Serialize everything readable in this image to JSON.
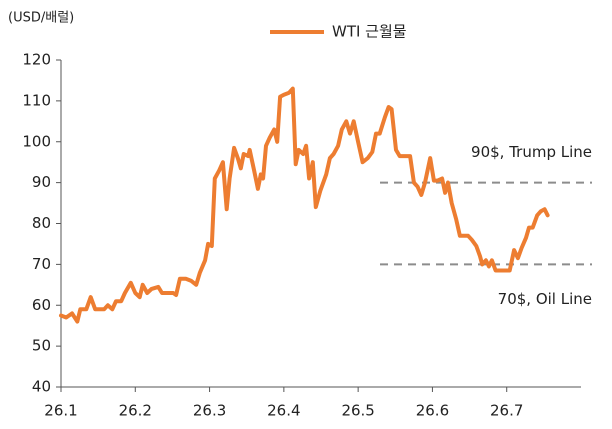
{
  "chart_data": {
    "type": "line",
    "y_unit_label": "(USD/배럴)",
    "legend_position": "top",
    "grid": false,
    "xlim": [
      0,
      7
    ],
    "xticks": [
      {
        "value": 0,
        "label": "26.1"
      },
      {
        "value": 1,
        "label": "26.2"
      },
      {
        "value": 2,
        "label": "26.3"
      },
      {
        "value": 3,
        "label": "26.4"
      },
      {
        "value": 4,
        "label": "26.5"
      },
      {
        "value": 5,
        "label": "26.6"
      },
      {
        "value": 6,
        "label": "26.7"
      }
    ],
    "ylim": [
      40,
      120
    ],
    "yticks": [
      40,
      50,
      60,
      70,
      80,
      90,
      100,
      110,
      120
    ],
    "series": [
      {
        "name": "WTI 근월물",
        "color": "#ed7d31",
        "x": [
          0,
          0.07,
          0.15,
          0.22,
          0.26,
          0.34,
          0.4,
          0.46,
          0.58,
          0.63,
          0.69,
          0.74,
          0.81,
          0.86,
          0.94,
          1.0,
          1.06,
          1.1,
          1.16,
          1.22,
          1.31,
          1.36,
          1.43,
          1.51,
          1.55,
          1.6,
          1.68,
          1.75,
          1.82,
          1.87,
          1.94,
          1.98,
          2.03,
          2.07,
          2.13,
          2.18,
          2.23,
          2.27,
          2.33,
          2.38,
          2.42,
          2.46,
          2.52,
          2.54,
          2.6,
          2.65,
          2.69,
          2.72,
          2.76,
          2.81,
          2.87,
          2.91,
          2.95,
          3.0,
          3.07,
          3.12,
          3.16,
          3.2,
          3.26,
          3.3,
          3.34,
          3.39,
          3.43,
          3.49,
          3.57,
          3.62,
          3.67,
          3.73,
          3.78,
          3.84,
          3.89,
          3.94,
          4.0,
          4.06,
          4.13,
          4.19,
          4.24,
          4.29,
          4.36,
          4.41,
          4.45,
          4.51,
          4.56,
          4.63,
          4.7,
          4.75,
          4.8,
          4.85,
          4.9,
          4.97,
          5.02,
          5.07,
          5.13,
          5.17,
          5.21,
          5.26,
          5.32,
          5.37,
          5.42,
          5.48,
          5.53,
          5.59,
          5.64,
          5.67,
          5.72,
          5.76,
          5.8,
          5.85,
          5.91,
          5.99,
          6.04,
          6.1,
          6.15,
          6.2,
          6.26,
          6.3,
          6.35,
          6.41,
          6.46,
          6.51,
          6.55
        ],
        "values": [
          57.5,
          57,
          58,
          56,
          59,
          59,
          62,
          59,
          59,
          60,
          59,
          61,
          61,
          63,
          65.5,
          63,
          62,
          65,
          63,
          64,
          64.5,
          63,
          63,
          63,
          62.5,
          66.5,
          66.5,
          66,
          65,
          68,
          71,
          75,
          74.5,
          91,
          93,
          95,
          83.5,
          91,
          98.5,
          96,
          93.5,
          97,
          96.5,
          98,
          93,
          88.5,
          92,
          91,
          99,
          101,
          103,
          100,
          111,
          111.5,
          112,
          113,
          94.5,
          98,
          97,
          99,
          91,
          95,
          84,
          88,
          92,
          96,
          97,
          99,
          103,
          105,
          102,
          105,
          100,
          95,
          96,
          97.5,
          102,
          102,
          106,
          108.5,
          108,
          98,
          96.5,
          96.5,
          96.5,
          90,
          89,
          87,
          90,
          96,
          90.5,
          90.5,
          91,
          87.5,
          90,
          85,
          81,
          77,
          77,
          77,
          76,
          74.5,
          72,
          70,
          71,
          69.5,
          71,
          68.5,
          68.5,
          68.5,
          68.5,
          73.5,
          71.5,
          74,
          76.5,
          79,
          79,
          82,
          83,
          83.5,
          82
        ]
      }
    ],
    "reference_lines": [
      {
        "value": 90,
        "label": "90$, Trump Line",
        "color": "#8c8c8c",
        "label_position": "above"
      },
      {
        "value": 70,
        "label": "70$, Oil Line",
        "color": "#8c8c8c",
        "label_position": "below"
      }
    ]
  }
}
